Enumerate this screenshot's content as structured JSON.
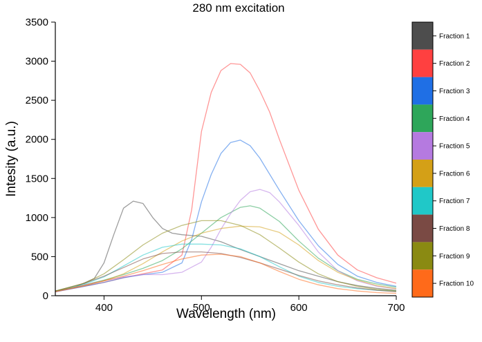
{
  "chart_data": {
    "type": "line",
    "title": "280 nm excitation",
    "xlabel": "Wavelength (nm)",
    "ylabel": "Intesity (a.u.)",
    "xlim": [
      350,
      700
    ],
    "ylim": [
      0,
      3500
    ],
    "xticks": [
      400,
      500,
      600,
      700
    ],
    "yticks": [
      0,
      500,
      1000,
      1500,
      2000,
      2500,
      3000,
      3500
    ],
    "grid": false,
    "legend": "right (colour bar)",
    "series": [
      {
        "name": "Fraction 1",
        "color": "#4d4d4d",
        "x": [
          350,
          370,
          390,
          400,
          410,
          420,
          430,
          440,
          450,
          460,
          470,
          480,
          490,
          500,
          520,
          540,
          560,
          580,
          600,
          620,
          640,
          660,
          680,
          700
        ],
        "y": [
          60,
          110,
          220,
          420,
          780,
          1120,
          1210,
          1180,
          1000,
          860,
          800,
          780,
          770,
          760,
          690,
          590,
          500,
          410,
          320,
          250,
          180,
          130,
          95,
          70
        ]
      },
      {
        "name": "Fraction 2",
        "color": "#ff4040",
        "x": [
          350,
          380,
          400,
          420,
          440,
          460,
          480,
          490,
          500,
          510,
          520,
          530,
          540,
          550,
          560,
          570,
          580,
          600,
          620,
          640,
          660,
          680,
          700
        ],
        "y": [
          50,
          120,
          170,
          230,
          280,
          330,
          520,
          1100,
          2100,
          2600,
          2880,
          2970,
          2960,
          2850,
          2620,
          2350,
          2000,
          1350,
          850,
          520,
          330,
          230,
          160
        ]
      },
      {
        "name": "Fraction 3",
        "color": "#1f6fe5",
        "x": [
          350,
          380,
          400,
          420,
          440,
          460,
          480,
          490,
          500,
          510,
          520,
          530,
          540,
          550,
          560,
          580,
          600,
          620,
          640,
          660,
          680,
          700
        ],
        "y": [
          50,
          120,
          170,
          230,
          270,
          300,
          420,
          720,
          1200,
          1550,
          1820,
          1960,
          1990,
          1920,
          1760,
          1350,
          960,
          640,
          400,
          250,
          170,
          120
        ]
      },
      {
        "name": "Fraction 4",
        "color": "#2ea65a",
        "x": [
          350,
          380,
          400,
          420,
          440,
          460,
          480,
          500,
          520,
          540,
          550,
          560,
          580,
          600,
          620,
          640,
          660,
          680,
          700
        ],
        "y": [
          50,
          140,
          200,
          270,
          350,
          450,
          600,
          800,
          1000,
          1130,
          1150,
          1120,
          950,
          700,
          480,
          320,
          210,
          150,
          110
        ]
      },
      {
        "name": "Fraction 5",
        "color": "#b57ae0",
        "x": [
          350,
          380,
          400,
          420,
          440,
          460,
          480,
          500,
          510,
          520,
          530,
          540,
          550,
          560,
          570,
          580,
          600,
          620,
          640,
          660,
          680,
          700
        ],
        "y": [
          50,
          140,
          190,
          240,
          270,
          270,
          300,
          430,
          620,
          850,
          1050,
          1220,
          1330,
          1360,
          1320,
          1200,
          900,
          560,
          320,
          190,
          120,
          90
        ]
      },
      {
        "name": "Fraction 6",
        "color": "#d4a017",
        "x": [
          350,
          380,
          400,
          420,
          440,
          460,
          480,
          500,
          520,
          540,
          560,
          580,
          600,
          620,
          640,
          660,
          680,
          700
        ],
        "y": [
          60,
          130,
          190,
          280,
          410,
          560,
          700,
          800,
          860,
          890,
          880,
          810,
          650,
          450,
          300,
          200,
          130,
          90
        ]
      },
      {
        "name": "Fraction 7",
        "color": "#20c8c8",
        "x": [
          350,
          380,
          400,
          420,
          440,
          460,
          480,
          500,
          520,
          540,
          560,
          580,
          600,
          620,
          640,
          660,
          680,
          700
        ],
        "y": [
          60,
          150,
          240,
          380,
          520,
          620,
          660,
          660,
          650,
          600,
          500,
          370,
          250,
          170,
          120,
          90,
          70,
          60
        ]
      },
      {
        "name": "Fraction 8",
        "color": "#7a4a44",
        "x": [
          350,
          380,
          400,
          420,
          440,
          460,
          480,
          500,
          520,
          540,
          560,
          580,
          600,
          620,
          640,
          660,
          680,
          700
        ],
        "y": [
          60,
          160,
          250,
          360,
          470,
          540,
          560,
          560,
          540,
          490,
          420,
          340,
          260,
          190,
          140,
          100,
          70,
          50
        ]
      },
      {
        "name": "Fraction 9",
        "color": "#8a8a12",
        "x": [
          350,
          380,
          400,
          420,
          440,
          460,
          480,
          500,
          520,
          540,
          560,
          580,
          600,
          620,
          640,
          660,
          680,
          700
        ],
        "y": [
          60,
          160,
          280,
          460,
          650,
          800,
          900,
          960,
          960,
          900,
          780,
          610,
          430,
          280,
          180,
          120,
          80,
          60
        ]
      },
      {
        "name": "Fraction 10",
        "color": "#ff6a1a",
        "x": [
          350,
          380,
          400,
          420,
          440,
          460,
          480,
          500,
          520,
          540,
          560,
          580,
          600,
          620,
          640,
          660,
          680,
          700
        ],
        "y": [
          50,
          130,
          190,
          250,
          320,
          400,
          470,
          520,
          530,
          500,
          420,
          310,
          210,
          140,
          90,
          60,
          40,
          30
        ]
      }
    ]
  }
}
